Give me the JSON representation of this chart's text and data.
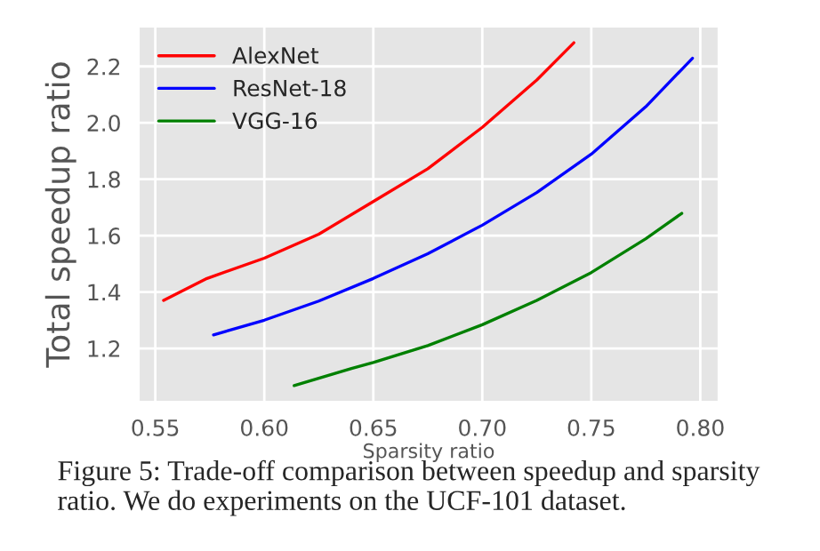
{
  "chart_data": {
    "type": "line",
    "xlabel": "Sparsity ratio",
    "ylabel": "Total speedup ratio",
    "series": [
      {
        "name": "AlexNet",
        "color": "#ff0000",
        "x": [
          0.5538,
          0.5737,
          0.6,
          0.625,
          0.65,
          0.675,
          0.7,
          0.725,
          0.742
        ],
        "values": [
          1.37,
          1.448,
          1.52,
          1.605,
          1.721,
          1.837,
          1.984,
          2.152,
          2.284
        ]
      },
      {
        "name": "ResNet-18",
        "color": "#0000ff",
        "x": [
          0.5767,
          0.6,
          0.625,
          0.65,
          0.675,
          0.7,
          0.725,
          0.75,
          0.775,
          0.7964
        ],
        "values": [
          1.248,
          1.3,
          1.368,
          1.448,
          1.536,
          1.637,
          1.753,
          1.889,
          2.057,
          2.229
        ]
      },
      {
        "name": "VGG-16",
        "color": "#008000",
        "x": [
          0.6137,
          0.64,
          0.65,
          0.675,
          0.7,
          0.725,
          0.75,
          0.775,
          0.7915
        ],
        "values": [
          1.068,
          1.129,
          1.15,
          1.21,
          1.284,
          1.37,
          1.469,
          1.589,
          1.679
        ]
      }
    ],
    "xlim": [
      0.5424,
      0.8084
    ],
    "ylim": [
      1.011,
      2.341
    ],
    "xticks": [
      {
        "value": 0.55,
        "label": "0.55"
      },
      {
        "value": 0.6,
        "label": "0.60"
      },
      {
        "value": 0.65,
        "label": "0.65"
      },
      {
        "value": 0.7,
        "label": "0.70"
      },
      {
        "value": 0.75,
        "label": "0.75"
      },
      {
        "value": 0.8,
        "label": "0.80"
      }
    ],
    "yticks": [
      1.2,
      1.4,
      1.6,
      1.8,
      {
        "value": 2,
        "label": "2.0"
      },
      2.2
    ],
    "grid": true,
    "legend": "top left",
    "line_style": "solid",
    "marker": "none",
    "annotations": [
      "Figure 5: Trade-off comparison between speedup and sparsity ratio. We do experiments on the UCF-101 dataset."
    ]
  }
}
